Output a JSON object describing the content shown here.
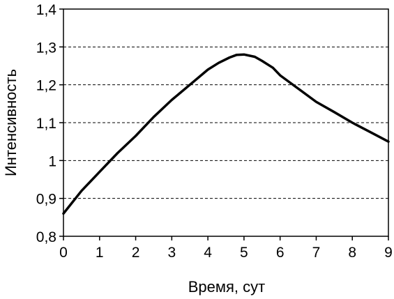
{
  "chart_data": {
    "type": "line",
    "xlabel": "Время, сут",
    "ylabel": "Интенсивность",
    "xlim": [
      0,
      9
    ],
    "ylim": [
      0.8,
      1.4
    ],
    "x_ticks": [
      "0",
      "1",
      "2",
      "3",
      "4",
      "5",
      "6",
      "7",
      "8",
      "9"
    ],
    "y_ticks": [
      "0,8",
      "0,9",
      "1",
      "1,1",
      "1,2",
      "1,3",
      "1,4"
    ],
    "y_tick_values": [
      0.8,
      0.9,
      1.0,
      1.1,
      1.2,
      1.3,
      1.4
    ],
    "grid": "horizontal dashed",
    "series": [
      {
        "color": "#000000",
        "x": [
          0,
          0.5,
          1,
          1.5,
          2,
          2.5,
          3,
          3.5,
          4,
          4.3,
          4.6,
          4.8,
          5,
          5.3,
          5.5,
          5.8,
          6,
          6.5,
          7,
          7.5,
          8,
          8.5,
          9
        ],
        "y": [
          0.86,
          0.92,
          0.97,
          1.02,
          1.065,
          1.115,
          1.16,
          1.2,
          1.24,
          1.258,
          1.272,
          1.279,
          1.28,
          1.274,
          1.263,
          1.245,
          1.225,
          1.19,
          1.155,
          1.128,
          1.1,
          1.075,
          1.05
        ]
      }
    ]
  }
}
